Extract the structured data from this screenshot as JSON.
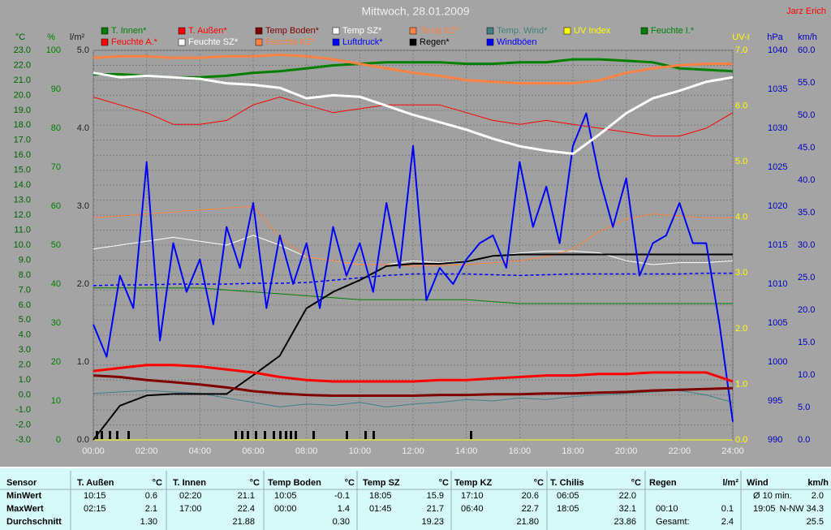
{
  "chart_data": {
    "type": "line",
    "title": "Mittwoch, 28.01.2009",
    "author": "Jarz Erich",
    "grid": true,
    "grid_axis": "temp",
    "xlim": [
      0,
      24
    ],
    "xticks": [
      {
        "value": 0,
        "label": "00:00"
      },
      {
        "value": 2,
        "label": "02:00"
      },
      {
        "value": 4,
        "label": "04:00"
      },
      {
        "value": 6,
        "label": "06:00"
      },
      {
        "value": 8,
        "label": "08:00"
      },
      {
        "value": 10,
        "label": "10:00"
      },
      {
        "value": 12,
        "label": "12:00"
      },
      {
        "value": 14,
        "label": "14:00"
      },
      {
        "value": 16,
        "label": "16:00"
      },
      {
        "value": 18,
        "label": "18:00"
      },
      {
        "value": 20,
        "label": "20:00"
      },
      {
        "value": 22,
        "label": "22:00"
      },
      {
        "value": 24,
        "label": "24:00"
      }
    ],
    "x": [
      0,
      1,
      2,
      3,
      4,
      5,
      6,
      7,
      8,
      9,
      10,
      11,
      12,
      13,
      14,
      15,
      16,
      17,
      18,
      19,
      20,
      21,
      22,
      23,
      24
    ],
    "axes": {
      "temp": {
        "label": "°C",
        "color": "#006400",
        "lim": [
          -3,
          23
        ],
        "ticks": [
          {
            "value": -3,
            "label": "-3.0"
          },
          {
            "value": -2,
            "label": "-2.0"
          },
          {
            "value": -1,
            "label": "-1.0"
          },
          {
            "value": 0,
            "label": "0.0"
          },
          {
            "value": 1,
            "label": "1.0"
          },
          {
            "value": 2,
            "label": "2.0"
          },
          {
            "value": 3,
            "label": "3.0"
          },
          {
            "value": 4,
            "label": "4.0"
          },
          {
            "value": 5,
            "label": "5.0"
          },
          {
            "value": 6,
            "label": "6.0"
          },
          {
            "value": 7,
            "label": "7.0"
          },
          {
            "value": 8,
            "label": "8.0"
          },
          {
            "value": 9,
            "label": "9.0"
          },
          {
            "value": 10,
            "label": "10.0"
          },
          {
            "value": 11,
            "label": "11.0"
          },
          {
            "value": 12,
            "label": "12.0"
          },
          {
            "value": 13,
            "label": "13.0"
          },
          {
            "value": 14,
            "label": "14.0"
          },
          {
            "value": 15,
            "label": "15.0"
          },
          {
            "value": 16,
            "label": "16.0"
          },
          {
            "value": 17,
            "label": "17.0"
          },
          {
            "value": 18,
            "label": "18.0"
          },
          {
            "value": 19,
            "label": "19.0"
          },
          {
            "value": 20,
            "label": "20.0"
          },
          {
            "value": 21,
            "label": "21.0"
          },
          {
            "value": 22,
            "label": "22.0"
          },
          {
            "value": 23,
            "label": "23.0"
          }
        ]
      },
      "hum": {
        "label": "%",
        "color": "#008000",
        "lim": [
          0,
          100
        ],
        "ticks": [
          0,
          10,
          20,
          30,
          40,
          50,
          60,
          70,
          80,
          90,
          100
        ]
      },
      "rain": {
        "label": "l/m²",
        "color": "#202020",
        "lim": [
          0,
          5
        ],
        "ticks": [
          {
            "value": 0,
            "label": "0.0"
          },
          {
            "value": 1,
            "label": "1.0"
          },
          {
            "value": 2,
            "label": "2.0"
          },
          {
            "value": 3,
            "label": "3.0"
          },
          {
            "value": 4,
            "label": "4.0"
          },
          {
            "value": 5,
            "label": "5.0"
          }
        ]
      },
      "uv": {
        "label": "UV-I",
        "color": "#ffff00",
        "lim": [
          0,
          7
        ],
        "ticks": [
          {
            "value": 0,
            "label": "0.0"
          },
          {
            "value": 1,
            "label": "1.0"
          },
          {
            "value": 2,
            "label": "2.0"
          },
          {
            "value": 3,
            "label": "3.0"
          },
          {
            "value": 4,
            "label": "4.0"
          },
          {
            "value": 5,
            "label": "5.0"
          },
          {
            "value": 6,
            "label": "6.0"
          },
          {
            "value": 7,
            "label": "7.0"
          }
        ]
      },
      "press": {
        "label": "hPa",
        "color": "#0000c0",
        "lim": [
          990,
          1040
        ],
        "ticks": [
          990,
          995,
          1000,
          1005,
          1010,
          1015,
          1020,
          1025,
          1030,
          1035,
          1040
        ]
      },
      "wind": {
        "label": "km/h",
        "color": "#0000c0",
        "lim": [
          0,
          60
        ],
        "ticks": [
          {
            "value": 0,
            "label": "0.0"
          },
          {
            "value": 5,
            "label": "5.0"
          },
          {
            "value": 10,
            "label": "10.0"
          },
          {
            "value": 15,
            "label": "15.0"
          },
          {
            "value": 20,
            "label": "20.0"
          },
          {
            "value": 25,
            "label": "25.0"
          },
          {
            "value": 30,
            "label": "30.0"
          },
          {
            "value": 35,
            "label": "35.0"
          },
          {
            "value": 40,
            "label": "40.0"
          },
          {
            "value": 45,
            "label": "45.0"
          },
          {
            "value": 50,
            "label": "50.0"
          },
          {
            "value": 55,
            "label": "55.0"
          },
          {
            "value": 60,
            "label": "60.0"
          }
        ]
      }
    },
    "series": [
      {
        "name": "T. Innen*",
        "color": "#008000",
        "axis": "temp",
        "thick": true,
        "values": [
          21.4,
          21.4,
          21.3,
          21.2,
          21.2,
          21.3,
          21.5,
          21.6,
          21.8,
          22.0,
          22.1,
          22.2,
          22.2,
          22.2,
          22.1,
          22.1,
          22.2,
          22.2,
          22.4,
          22.4,
          22.3,
          22.2,
          21.8,
          21.7,
          21.6
        ]
      },
      {
        "name": "T. Außen*",
        "color": "#ff0000",
        "axis": "temp",
        "thick": true,
        "values": [
          1.6,
          1.8,
          2.0,
          2.0,
          1.9,
          1.7,
          1.5,
          1.2,
          1.0,
          0.9,
          0.9,
          0.9,
          0.9,
          1.0,
          1.0,
          1.1,
          1.2,
          1.3,
          1.3,
          1.4,
          1.4,
          1.5,
          1.5,
          1.5,
          0.9
        ]
      },
      {
        "name": "Temp Boden*",
        "color": "#800000",
        "axis": "temp",
        "thick": true,
        "values": [
          1.3,
          1.2,
          1.0,
          0.85,
          0.7,
          0.5,
          0.25,
          0.1,
          0.0,
          -0.05,
          -0.05,
          -0.05,
          -0.05,
          0.0,
          0.0,
          0.05,
          0.05,
          0.1,
          0.1,
          0.15,
          0.2,
          0.3,
          0.35,
          0.4,
          0.45
        ]
      },
      {
        "name": "Temp SZ*",
        "color": "#ffffff",
        "axis": "temp",
        "thick": true,
        "values": [
          21.5,
          21.2,
          21.3,
          21.2,
          21.1,
          20.8,
          20.7,
          20.5,
          19.8,
          20.0,
          19.9,
          19.3,
          18.7,
          18.2,
          17.7,
          17.1,
          16.6,
          16.3,
          16.1,
          17.4,
          18.8,
          19.8,
          20.3,
          20.9,
          21.2
        ]
      },
      {
        "name": "Temp KZ*",
        "color": "#ff8040",
        "axis": "temp",
        "thick": true,
        "values": [
          22.5,
          22.6,
          22.6,
          22.5,
          22.5,
          22.6,
          22.6,
          22.7,
          22.6,
          22.4,
          22.1,
          21.8,
          21.5,
          21.3,
          21.0,
          20.9,
          20.8,
          20.8,
          20.8,
          21.0,
          21.5,
          21.8,
          22.0,
          22.1,
          22.1
        ]
      },
      {
        "name": "Temp. Wind*",
        "color": "#408080",
        "axis": "temp",
        "values": [
          0.1,
          0.2,
          0.3,
          0.2,
          0.1,
          -0.2,
          -0.5,
          -0.8,
          -0.6,
          -0.7,
          -0.5,
          -0.8,
          -0.6,
          -0.5,
          -0.3,
          -0.4,
          -0.2,
          -0.3,
          -0.1,
          0.0,
          0.1,
          0.2,
          0.3,
          0.0,
          -0.5
        ]
      },
      {
        "name": "UV Index",
        "color": "#ffff00",
        "axis": "uv",
        "values": [
          0,
          0,
          0,
          0,
          0,
          0,
          0,
          0,
          0,
          0,
          0,
          0,
          0,
          0,
          0,
          0,
          0,
          0,
          0,
          0,
          0,
          0,
          0,
          0,
          0
        ]
      },
      {
        "name": "Feuchte I.*",
        "color": "#008000",
        "axis": "hum",
        "values": [
          39,
          39,
          39,
          39,
          39,
          38.5,
          38,
          37.5,
          37,
          36.5,
          36,
          36,
          36,
          36,
          36,
          35.5,
          35,
          35,
          35,
          35,
          35,
          35,
          35,
          35,
          35
        ]
      },
      {
        "name": "Feuchte A.*",
        "color": "#ff0000",
        "axis": "hum",
        "values": [
          88,
          86,
          84,
          81,
          81,
          82,
          86,
          88,
          86,
          84,
          85,
          86,
          86,
          86,
          84,
          82,
          81,
          82,
          81,
          80,
          79,
          78,
          78,
          80,
          84
        ]
      },
      {
        "name": "Feuchte SZ*",
        "color": "#ffffff",
        "axis": "hum",
        "values": [
          49,
          50,
          51,
          52,
          51,
          50,
          52.5,
          50,
          47,
          46,
          45,
          45,
          46,
          45.5,
          46,
          47,
          48,
          48.5,
          48.5,
          48,
          46,
          45,
          45.5,
          45.5,
          46
        ]
      },
      {
        "name": "Feuchte KZ*",
        "color": "#ff8040",
        "axis": "hum",
        "values": [
          57,
          57.5,
          58,
          58.5,
          59,
          59.5,
          60,
          52,
          47,
          46,
          45,
          45,
          44.6,
          44.8,
          45,
          45.5,
          46,
          47,
          49,
          53.5,
          56.7,
          58,
          57.5,
          57,
          57
        ]
      },
      {
        "name": "Luftdruck*",
        "color": "#0000ff",
        "axis": "press",
        "dashed": true,
        "values": [
          1009.8,
          1009.9,
          1009.9,
          1010,
          1010,
          1010,
          1010.1,
          1010.1,
          1010.2,
          1010.5,
          1010.8,
          1011.1,
          1011.3,
          1011.3,
          1011.3,
          1011.2,
          1011.1,
          1011.2,
          1011.3,
          1011.3,
          1011.3,
          1011.3,
          1011.3,
          1011.4,
          1011.4
        ]
      },
      {
        "name": "Regen*",
        "color": "#000000",
        "axis": "rain",
        "values": [
          0,
          0.44,
          0.57,
          0.59,
          0.59,
          0.59,
          0.83,
          1.08,
          1.69,
          1.9,
          2.05,
          2.23,
          2.26,
          2.26,
          2.29,
          2.36,
          2.38,
          2.38,
          2.38,
          2.38,
          2.38,
          2.38,
          2.38,
          2.38,
          2.38
        ]
      },
      {
        "name": "Windböen",
        "color": "#0000ff",
        "axis": "wind",
        "x": [
          0,
          0.5,
          1,
          1.5,
          2,
          2.5,
          3,
          3.5,
          4,
          4.5,
          5,
          5.5,
          6,
          6.5,
          7,
          7.5,
          8,
          8.5,
          9,
          9.5,
          10,
          10.5,
          11,
          11.5,
          12,
          12.5,
          13,
          13.5,
          14,
          14.5,
          15,
          15.5,
          16,
          16.5,
          17,
          17.5,
          18,
          18.5,
          19,
          19.5,
          20,
          20.5,
          21,
          21.5,
          22,
          22.5,
          23,
          23.5,
          24
        ],
        "values": [
          17.8,
          12.8,
          25.3,
          20.3,
          42.8,
          15.3,
          30.3,
          22.8,
          27.8,
          17.8,
          32.8,
          26.5,
          36.5,
          20.3,
          31.5,
          24,
          30.3,
          20.3,
          32.8,
          25.3,
          30.3,
          22.8,
          36.5,
          26.5,
          45.3,
          21.5,
          26.5,
          24,
          27.8,
          30.3,
          31.5,
          26.5,
          42.8,
          32.8,
          39,
          30.3,
          45.3,
          50.3,
          40.3,
          32.8,
          40.3,
          25.3,
          30.3,
          31.5,
          36.5,
          30.3,
          30.3,
          17.8,
          2.8
        ]
      }
    ]
  },
  "table": {
    "corner": "Sensor",
    "columns": [
      {
        "name": "T. Außen",
        "unit": "°C"
      },
      {
        "name": "T. Innen",
        "unit": "°C"
      },
      {
        "name": "Temp Boden",
        "unit": "°C"
      },
      {
        "name": "Temp SZ",
        "unit": "°C"
      },
      {
        "name": "Temp KZ",
        "unit": "°C"
      },
      {
        "name": "T. Chilis",
        "unit": "°C"
      },
      {
        "name": "Regen",
        "unit": "l/m²"
      },
      {
        "name": "Wind",
        "unit": "km/h"
      }
    ],
    "row_labels": [
      "MinWert",
      "MaxWert",
      "Durchschnitt"
    ],
    "cells": [
      [
        [
          "10:15",
          "0.6"
        ],
        [
          "02:20",
          "21.1"
        ],
        [
          "10:05",
          "-0.1"
        ],
        [
          "18:05",
          "15.9"
        ],
        [
          "17:10",
          "20.6"
        ],
        [
          "06:05",
          "22.0"
        ],
        [],
        [
          "Ø 10 min.",
          "2.0"
        ]
      ],
      [
        [
          "02:15",
          "2.1"
        ],
        [
          "17:00",
          "22.4"
        ],
        [
          "00:00",
          "1.4"
        ],
        [
          "01:45",
          "21.7"
        ],
        [
          "06:40",
          "22.7"
        ],
        [
          "18:05",
          "32.1"
        ],
        [
          "00:10",
          "0.1"
        ],
        [
          "19:05",
          "N-NW 34.3"
        ]
      ],
      [
        [
          "1.30"
        ],
        [
          "21.88"
        ],
        [
          "0.30"
        ],
        [
          "19.23"
        ],
        [
          "21.80"
        ],
        [
          "23.86"
        ],
        [
          "Gesamt:",
          "2.4"
        ],
        [
          "25.5"
        ]
      ]
    ]
  }
}
